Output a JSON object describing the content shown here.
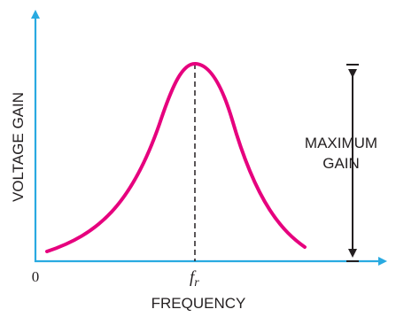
{
  "diagram": {
    "y_axis_label": "VOLTAGE GAIN",
    "x_axis_label": "FREQUENCY",
    "origin_label": "0",
    "peak_label_main": "f",
    "peak_label_sub": "r",
    "max_gain_label_line1": "MAXIMUM",
    "max_gain_label_line2": "GAIN"
  },
  "colors": {
    "axis": "#29aae1",
    "curve": "#e6007e",
    "text": "#231f20",
    "dashed_line": "#231f20"
  }
}
